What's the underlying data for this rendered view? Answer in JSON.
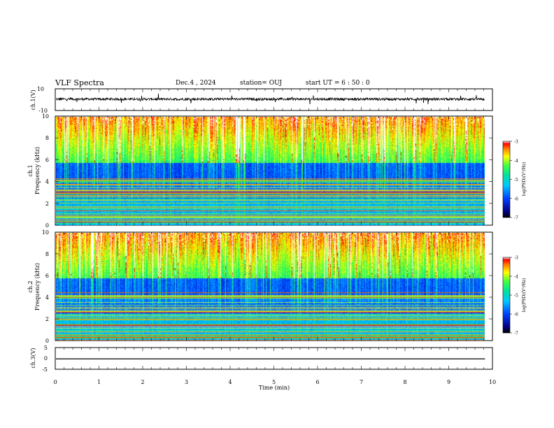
{
  "header": {
    "title": "VLF Spectra",
    "date": "Dec.4  , 2024",
    "station": "station= OUJ",
    "start": "start  UT =   6 : 50 : 0"
  },
  "chart_data": [
    {
      "type": "line",
      "panel": "ch1-waveform",
      "ylabel": "ch.1(V)",
      "ylim": [
        -10,
        10
      ],
      "yticks": [
        "10",
        "-10"
      ],
      "baseline_value": 0.5,
      "color": "#000000"
    },
    {
      "type": "heatmap",
      "panel": "ch1-spectrogram",
      "ylabel_channel": "ch.1",
      "ylabel": "Frequency (kHz)",
      "ylim": [
        0,
        10
      ],
      "yticks": [
        "0",
        "2",
        "4",
        "6",
        "8",
        "10"
      ],
      "colorbar": {
        "label": "log(PSD)(V²/Hz)",
        "range": [
          -7,
          -3
        ],
        "ticks": [
          "-3",
          "-4",
          "-5",
          "-6",
          "-7"
        ]
      }
    },
    {
      "type": "heatmap",
      "panel": "ch2-spectrogram",
      "ylabel_channel": "ch.2",
      "ylabel": "Frequency (kHz)",
      "ylim": [
        0,
        10
      ],
      "yticks": [
        "0",
        "2",
        "4",
        "6",
        "8",
        "10"
      ],
      "colorbar": {
        "label": "log(PSD)(V²/Hz)",
        "range": [
          -7,
          -3
        ],
        "ticks": [
          "-3",
          "-4",
          "-5",
          "-6",
          "-7"
        ]
      }
    },
    {
      "type": "line",
      "panel": "ch3-waveform",
      "ylabel": "ch.3(V)",
      "ylim": [
        -5,
        5
      ],
      "yticks": [
        "5",
        "0",
        "-5"
      ],
      "baseline_value": -0.2,
      "color": "#000000"
    }
  ],
  "xaxis": {
    "label": "Time (min)",
    "range": [
      0,
      10
    ],
    "ticks": [
      "0",
      "1",
      "2",
      "3",
      "4",
      "5",
      "6",
      "7",
      "8",
      "9",
      "10"
    ],
    "data_end": 9.83
  }
}
